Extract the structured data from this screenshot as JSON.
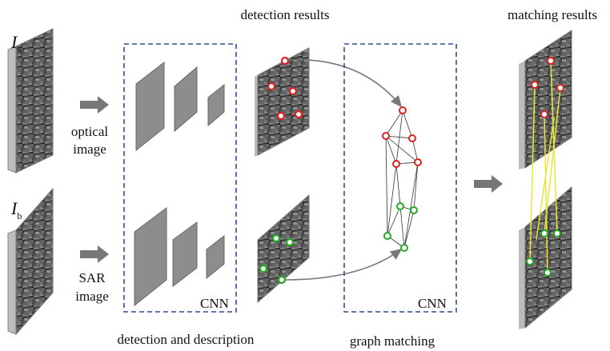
{
  "inputs": [
    {
      "label": {
        "symbol": "I",
        "subscript": "a"
      },
      "caption": [
        "optical",
        "image"
      ]
    },
    {
      "label": {
        "symbol": "I",
        "subscript": "b"
      },
      "caption": [
        "SAR",
        "image"
      ]
    }
  ],
  "stages": [
    {
      "box_label": "CNN",
      "caption": "detection and description"
    },
    {
      "box_label": "CNN",
      "caption": "graph matching"
    }
  ],
  "headers": {
    "detection": "detection results",
    "matching": "matching results"
  }
}
